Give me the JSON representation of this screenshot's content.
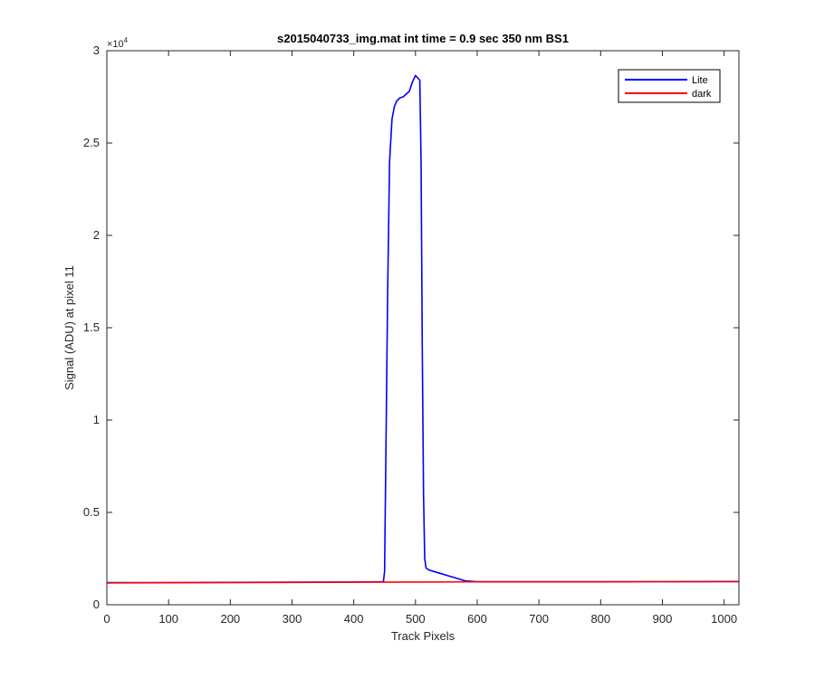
{
  "chart_data": {
    "type": "line",
    "title": "s2015040733_img.mat int time = 0.9 sec  350 nm BS1",
    "xlabel": "Track Pixels",
    "ylabel": "Signal (ADU) at pixel 11",
    "xlim": [
      0,
      1024
    ],
    "ylim": [
      0,
      30000
    ],
    "y_multiplier": {
      "prefix": "×10",
      "exponent": "4"
    },
    "x_ticks": [
      0,
      100,
      200,
      300,
      400,
      500,
      600,
      700,
      800,
      900,
      1000
    ],
    "x_tick_labels": [
      "0",
      "100",
      "200",
      "300",
      "400",
      "500",
      "600",
      "700",
      "800",
      "900",
      "1000"
    ],
    "y_ticks": [
      0,
      5000,
      10000,
      15000,
      20000,
      25000,
      30000
    ],
    "y_tick_labels": [
      "0",
      "0.5",
      "1",
      "1.5",
      "2",
      "2.5",
      "3"
    ],
    "grid": false,
    "legend_position": "top-right",
    "series": [
      {
        "name": "Lite",
        "color": "#0000ff",
        "x": [
          0,
          100,
          200,
          300,
          400,
          448,
          450,
          452,
          455,
          458,
          462,
          466,
          470,
          475,
          480,
          485,
          490,
          495,
          500,
          503,
          507,
          509,
          511,
          513,
          515,
          517,
          520,
          522,
          530,
          540,
          550,
          560,
          570,
          580,
          600,
          700,
          800,
          900,
          1024
        ],
        "y": [
          1200,
          1200,
          1210,
          1220,
          1230,
          1250,
          1800,
          8000,
          17000,
          24000,
          26300,
          27000,
          27300,
          27450,
          27500,
          27650,
          27800,
          28300,
          28650,
          28550,
          28400,
          24000,
          14000,
          6000,
          2500,
          2000,
          1920,
          1880,
          1800,
          1700,
          1600,
          1500,
          1400,
          1300,
          1250,
          1250,
          1250,
          1250,
          1260
        ]
      },
      {
        "name": "dark",
        "color": "#ff0000",
        "x": [
          0,
          100,
          200,
          300,
          400,
          500,
          600,
          700,
          800,
          900,
          1024
        ],
        "y": [
          1180,
          1190,
          1200,
          1210,
          1220,
          1230,
          1240,
          1240,
          1240,
          1250,
          1250
        ]
      }
    ]
  }
}
